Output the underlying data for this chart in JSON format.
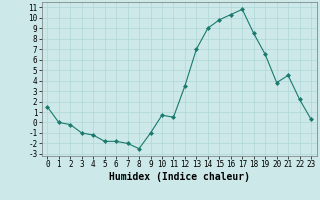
{
  "x": [
    0,
    1,
    2,
    3,
    4,
    5,
    6,
    7,
    8,
    9,
    10,
    11,
    12,
    13,
    14,
    15,
    16,
    17,
    18,
    19,
    20,
    21,
    22,
    23
  ],
  "y": [
    1.5,
    0.0,
    -0.2,
    -1.0,
    -1.2,
    -1.8,
    -1.8,
    -2.0,
    -2.5,
    -1.0,
    0.7,
    0.5,
    3.5,
    7.0,
    9.0,
    9.8,
    10.3,
    10.8,
    8.5,
    6.5,
    3.8,
    4.5,
    2.2,
    0.3
  ],
  "xlabel": "Humidex (Indice chaleur)",
  "ylim": [
    -3.2,
    11.5
  ],
  "xlim": [
    -0.5,
    23.5
  ],
  "yticks": [
    -3,
    -2,
    -1,
    0,
    1,
    2,
    3,
    4,
    5,
    6,
    7,
    8,
    9,
    10,
    11
  ],
  "xticks": [
    0,
    1,
    2,
    3,
    4,
    5,
    6,
    7,
    8,
    9,
    10,
    11,
    12,
    13,
    14,
    15,
    16,
    17,
    18,
    19,
    20,
    21,
    22,
    23
  ],
  "line_color": "#1a7a6e",
  "marker_color": "#1a7a6e",
  "bg_color": "#cce8e8",
  "grid_color": "#b0d8d8",
  "xlabel_fontsize": 7,
  "tick_fontsize": 5.5
}
